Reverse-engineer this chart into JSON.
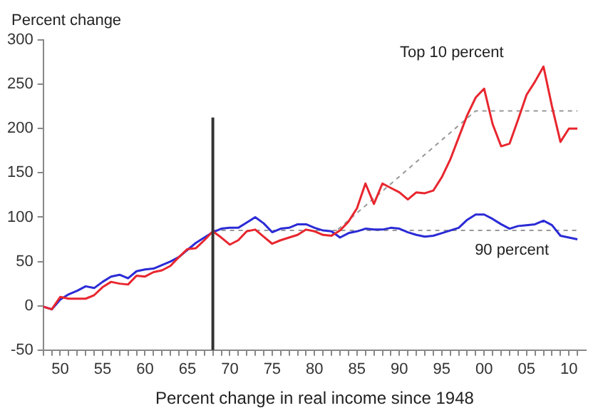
{
  "chart_data": {
    "type": "line",
    "xlabel": "Percent change in real income since 1948",
    "ylabel": "Percent change",
    "x": [
      1948,
      1949,
      1950,
      1951,
      1952,
      1953,
      1954,
      1955,
      1956,
      1957,
      1958,
      1959,
      1960,
      1961,
      1962,
      1963,
      1964,
      1965,
      1966,
      1967,
      1968,
      1969,
      1970,
      1971,
      1972,
      1973,
      1974,
      1975,
      1976,
      1977,
      1978,
      1979,
      1980,
      1981,
      1982,
      1983,
      1984,
      1985,
      1986,
      1987,
      1988,
      1989,
      1990,
      1991,
      1992,
      1993,
      1994,
      1995,
      1996,
      1997,
      1998,
      1999,
      2000,
      2001,
      2002,
      2003,
      2004,
      2005,
      2006,
      2007,
      2008,
      2009,
      2010,
      2011
    ],
    "series": [
      {
        "name": "Top 10 percent",
        "color": "#e8262e",
        "values": [
          -1,
          -4,
          10,
          8,
          8,
          8,
          12,
          21,
          27,
          25,
          24,
          34,
          33,
          38,
          40,
          45,
          55,
          64,
          65,
          74,
          84,
          77,
          69,
          74,
          84,
          86,
          78,
          70,
          74,
          77,
          80,
          86,
          84,
          80,
          79,
          85,
          95,
          110,
          138,
          115,
          138,
          133,
          128,
          120,
          128,
          127,
          130,
          145,
          165,
          190,
          215,
          235,
          245,
          205,
          180,
          183,
          210,
          238,
          253,
          270,
          225,
          185,
          200,
          200
        ]
      },
      {
        "name": "90 percent",
        "color": "#2b2bd6",
        "values": [
          -1,
          -4,
          7,
          13,
          17,
          22,
          20,
          27,
          33,
          35,
          31,
          39,
          41,
          42,
          46,
          50,
          55,
          63,
          71,
          77,
          83,
          87,
          88,
          88,
          94,
          100,
          93,
          83,
          87,
          88,
          92,
          92,
          88,
          85,
          84,
          77,
          82,
          84,
          87,
          86,
          86,
          88,
          87,
          83,
          80,
          78,
          79,
          82,
          85,
          88,
          97,
          103,
          103,
          98,
          92,
          87,
          90,
          91,
          92,
          96,
          91,
          79,
          77,
          75
        ]
      },
      {
        "type": "line",
        "line_style": "dashed",
        "color": "#999999",
        "x": [
          1982,
          1999,
          2011
        ],
        "values": [
          80,
          220,
          220
        ]
      },
      {
        "type": "line",
        "line_style": "dashed",
        "color": "#999999",
        "x": [
          1968,
          2011
        ],
        "values": [
          85,
          85
        ]
      }
    ],
    "ref_lines": [
      {
        "axis": "x",
        "value": 1968,
        "color": "#333333"
      }
    ],
    "xlim": [
      1948,
      2012
    ],
    "xticks": [
      {
        "value": 1948,
        "label": null
      },
      {
        "value": 1949,
        "label": null
      },
      {
        "value": 1950,
        "label": "50"
      },
      {
        "value": 1951,
        "label": null
      },
      {
        "value": 1952,
        "label": null
      },
      {
        "value": 1953,
        "label": null
      },
      {
        "value": 1954,
        "label": null
      },
      {
        "value": 1955,
        "label": "55"
      },
      {
        "value": 1956,
        "label": null
      },
      {
        "value": 1957,
        "label": null
      },
      {
        "value": 1958,
        "label": null
      },
      {
        "value": 1959,
        "label": null
      },
      {
        "value": 1960,
        "label": "60"
      },
      {
        "value": 1961,
        "label": null
      },
      {
        "value": 1962,
        "label": null
      },
      {
        "value": 1963,
        "label": null
      },
      {
        "value": 1964,
        "label": null
      },
      {
        "value": 1965,
        "label": "65"
      },
      {
        "value": 1966,
        "label": null
      },
      {
        "value": 1967,
        "label": null
      },
      {
        "value": 1968,
        "label": null
      },
      {
        "value": 1969,
        "label": null
      },
      {
        "value": 1970,
        "label": "70"
      },
      {
        "value": 1971,
        "label": null
      },
      {
        "value": 1972,
        "label": null
      },
      {
        "value": 1973,
        "label": null
      },
      {
        "value": 1974,
        "label": null
      },
      {
        "value": 1975,
        "label": "75"
      },
      {
        "value": 1976,
        "label": null
      },
      {
        "value": 1977,
        "label": null
      },
      {
        "value": 1978,
        "label": null
      },
      {
        "value": 1979,
        "label": null
      },
      {
        "value": 1980,
        "label": "80"
      },
      {
        "value": 1981,
        "label": null
      },
      {
        "value": 1982,
        "label": null
      },
      {
        "value": 1983,
        "label": null
      },
      {
        "value": 1984,
        "label": null
      },
      {
        "value": 1985,
        "label": "85"
      },
      {
        "value": 1986,
        "label": null
      },
      {
        "value": 1987,
        "label": null
      },
      {
        "value": 1988,
        "label": null
      },
      {
        "value": 1989,
        "label": null
      },
      {
        "value": 1990,
        "label": "90"
      },
      {
        "value": 1991,
        "label": null
      },
      {
        "value": 1992,
        "label": null
      },
      {
        "value": 1993,
        "label": null
      },
      {
        "value": 1994,
        "label": null
      },
      {
        "value": 1995,
        "label": "95"
      },
      {
        "value": 1996,
        "label": null
      },
      {
        "value": 1997,
        "label": null
      },
      {
        "value": 1998,
        "label": null
      },
      {
        "value": 1999,
        "label": null
      },
      {
        "value": 2000,
        "label": "00"
      },
      {
        "value": 2001,
        "label": null
      },
      {
        "value": 2002,
        "label": null
      },
      {
        "value": 2003,
        "label": null
      },
      {
        "value": 2004,
        "label": null
      },
      {
        "value": 2005,
        "label": "05"
      },
      {
        "value": 2006,
        "label": null
      },
      {
        "value": 2007,
        "label": null
      },
      {
        "value": 2008,
        "label": null
      },
      {
        "value": 2009,
        "label": null
      },
      {
        "value": 2010,
        "label": "10"
      },
      {
        "value": 2011,
        "label": null
      }
    ],
    "ylim": [
      -50,
      300
    ],
    "yticks": [
      -50,
      0,
      50,
      100,
      150,
      200,
      250,
      300
    ],
    "grid": false,
    "legend": false,
    "marker": "none",
    "line_style": "solid"
  }
}
